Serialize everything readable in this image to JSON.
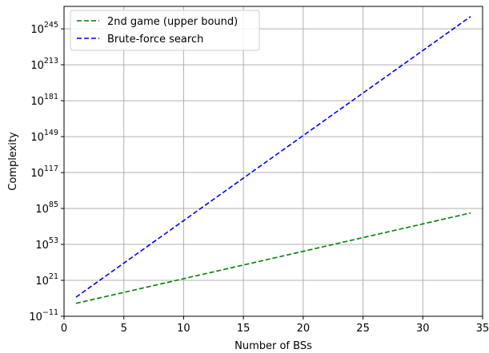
{
  "chart_data": {
    "type": "line",
    "title": "",
    "xlabel": "Number of BSs",
    "ylabel": "Complexity",
    "xlim": [
      0,
      35
    ],
    "ylim_log10": [
      -11,
      265
    ],
    "yscale": "log",
    "grid": true,
    "legend_position": "top-left",
    "x_ticks": [
      0,
      5,
      10,
      15,
      20,
      25,
      30,
      35
    ],
    "y_ticks": [
      {
        "base": "10",
        "exponent": "−11",
        "log10": -11
      },
      {
        "base": "10",
        "exponent": "21",
        "log10": 21
      },
      {
        "base": "10",
        "exponent": "53",
        "log10": 53
      },
      {
        "base": "10",
        "exponent": "85",
        "log10": 85
      },
      {
        "base": "10",
        "exponent": "117",
        "log10": 117
      },
      {
        "base": "10",
        "exponent": "149",
        "log10": 149
      },
      {
        "base": "10",
        "exponent": "181",
        "log10": 181
      },
      {
        "base": "10",
        "exponent": "213",
        "log10": 213
      },
      {
        "base": "10",
        "exponent": "245",
        "log10": 245
      }
    ],
    "series": [
      {
        "name": "2nd game (upper bound)",
        "color": "#008000",
        "dash": "dashed",
        "x": [
          1,
          34
        ],
        "log10_y": [
          0.5,
          81
        ]
      },
      {
        "name": "Brute-force search",
        "color": "#0000ff",
        "dash": "dashed",
        "x": [
          1,
          34
        ],
        "log10_y": [
          6,
          256
        ]
      }
    ]
  }
}
